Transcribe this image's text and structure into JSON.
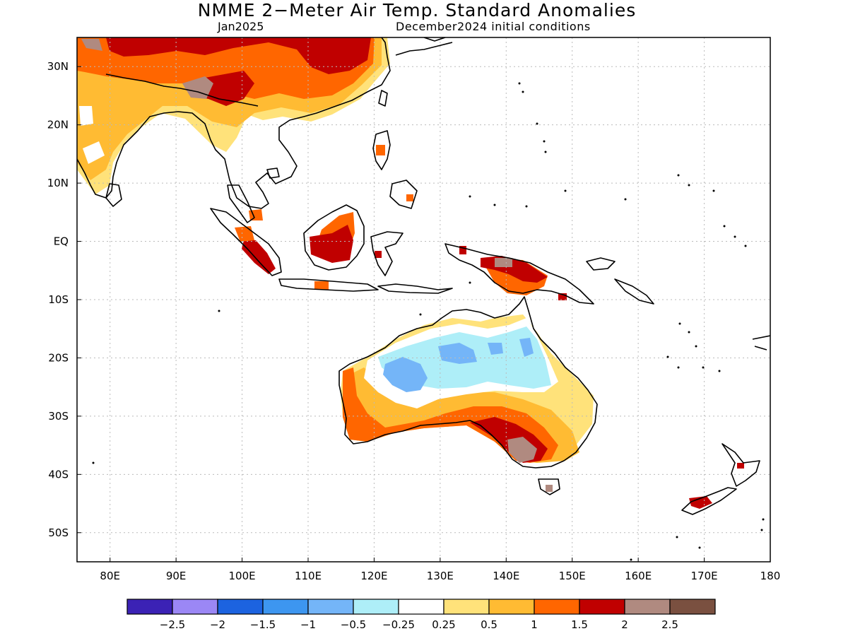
{
  "title": "NMME 2−Meter Air Temp. Standard Anomalies",
  "subtitle_left": "Jan2025",
  "subtitle_right": "December2024 initial conditions",
  "map": {
    "lon_range": [
      75,
      180
    ],
    "lat_range": [
      -55,
      35
    ],
    "lon_ticks": [
      {
        "v": 80,
        "label": "80E"
      },
      {
        "v": 90,
        "label": "90E"
      },
      {
        "v": 100,
        "label": "100E"
      },
      {
        "v": 110,
        "label": "110E"
      },
      {
        "v": 120,
        "label": "120E"
      },
      {
        "v": 130,
        "label": "130E"
      },
      {
        "v": 140,
        "label": "140E"
      },
      {
        "v": 150,
        "label": "150E"
      },
      {
        "v": 160,
        "label": "160E"
      },
      {
        "v": 170,
        "label": "170E"
      },
      {
        "v": 180,
        "label": "180"
      }
    ],
    "lat_ticks": [
      {
        "v": 30,
        "label": "30N"
      },
      {
        "v": 20,
        "label": "20N"
      },
      {
        "v": 10,
        "label": "10N"
      },
      {
        "v": 0,
        "label": "EQ"
      },
      {
        "v": -10,
        "label": "10S"
      },
      {
        "v": -20,
        "label": "20S"
      },
      {
        "v": -30,
        "label": "30S"
      },
      {
        "v": -40,
        "label": "40S"
      },
      {
        "v": -50,
        "label": "50S"
      }
    ],
    "grid": true
  },
  "legend": {
    "colors": [
      "#3b22b5",
      "#9b87f5",
      "#1c63e0",
      "#3d96f0",
      "#74b5f8",
      "#aeeef8",
      "#ffffff",
      "#ffe27a",
      "#ffbb33",
      "#ff6600",
      "#c00000",
      "#b08a80",
      "#7a5040"
    ],
    "labels": [
      "−2.5",
      "−2",
      "−1.5",
      "−1",
      "−0.5",
      "−0.25",
      "0.25",
      "0.5",
      "1",
      "1.5",
      "2",
      "2.5"
    ]
  },
  "colors": {
    "coast": "#000000",
    "grid": "#bbbbbb"
  }
}
